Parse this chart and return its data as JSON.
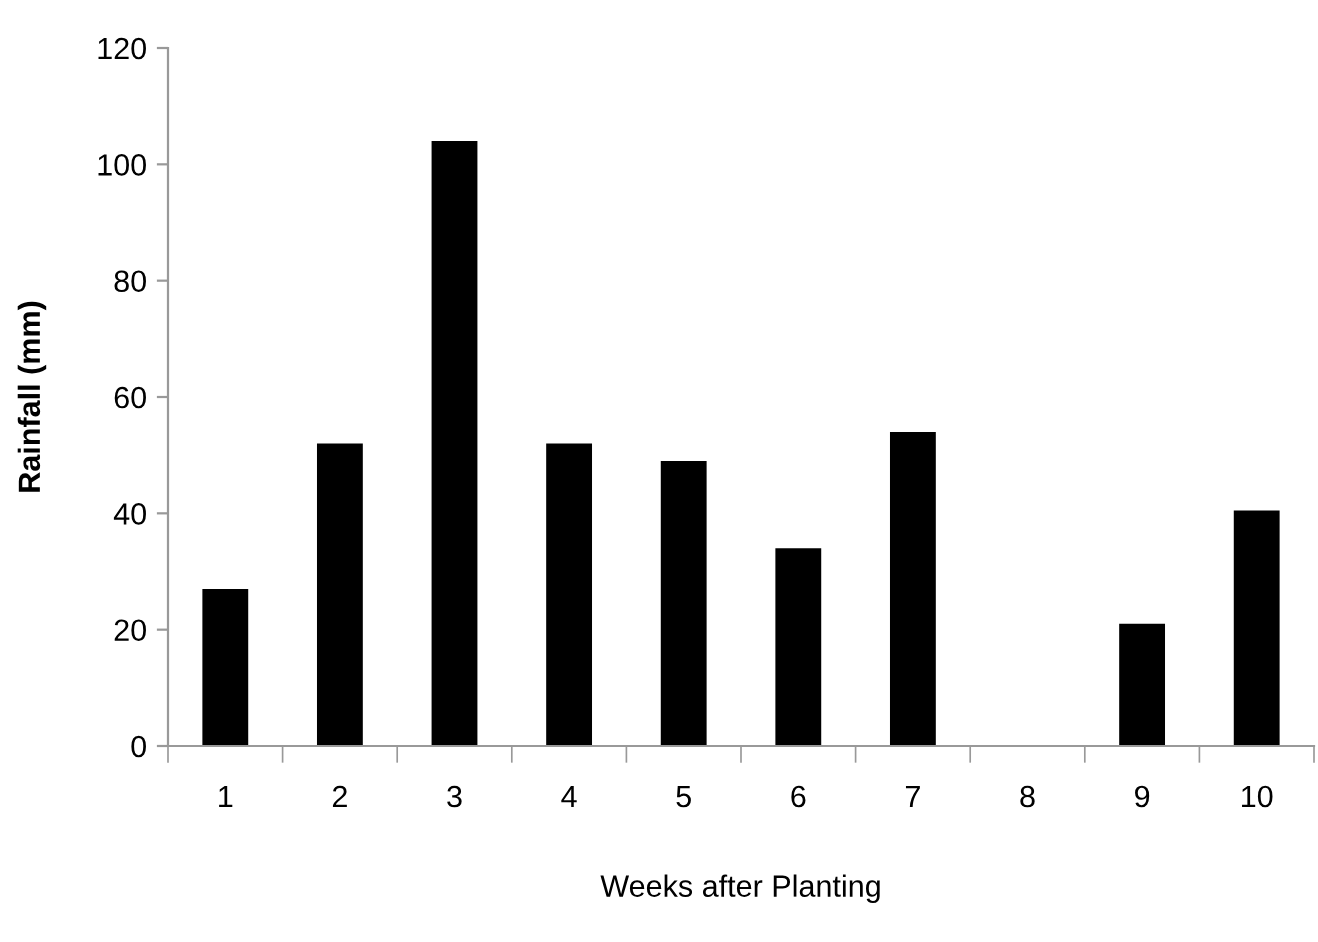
{
  "chart_data": {
    "type": "bar",
    "xlabel": "Weeks after Planting",
    "ylabel": "Rainfall (mm)",
    "categories": [
      "1",
      "2",
      "3",
      "4",
      "5",
      "6",
      "7",
      "8",
      "9",
      "10"
    ],
    "values": [
      27,
      52,
      104,
      52,
      49,
      34,
      54,
      0,
      21,
      40.5
    ],
    "color": "#000000",
    "ylim": [
      0,
      120
    ],
    "yticks": [
      0,
      20,
      40,
      60,
      80,
      100,
      120
    ],
    "grid": false,
    "legend": false
  }
}
